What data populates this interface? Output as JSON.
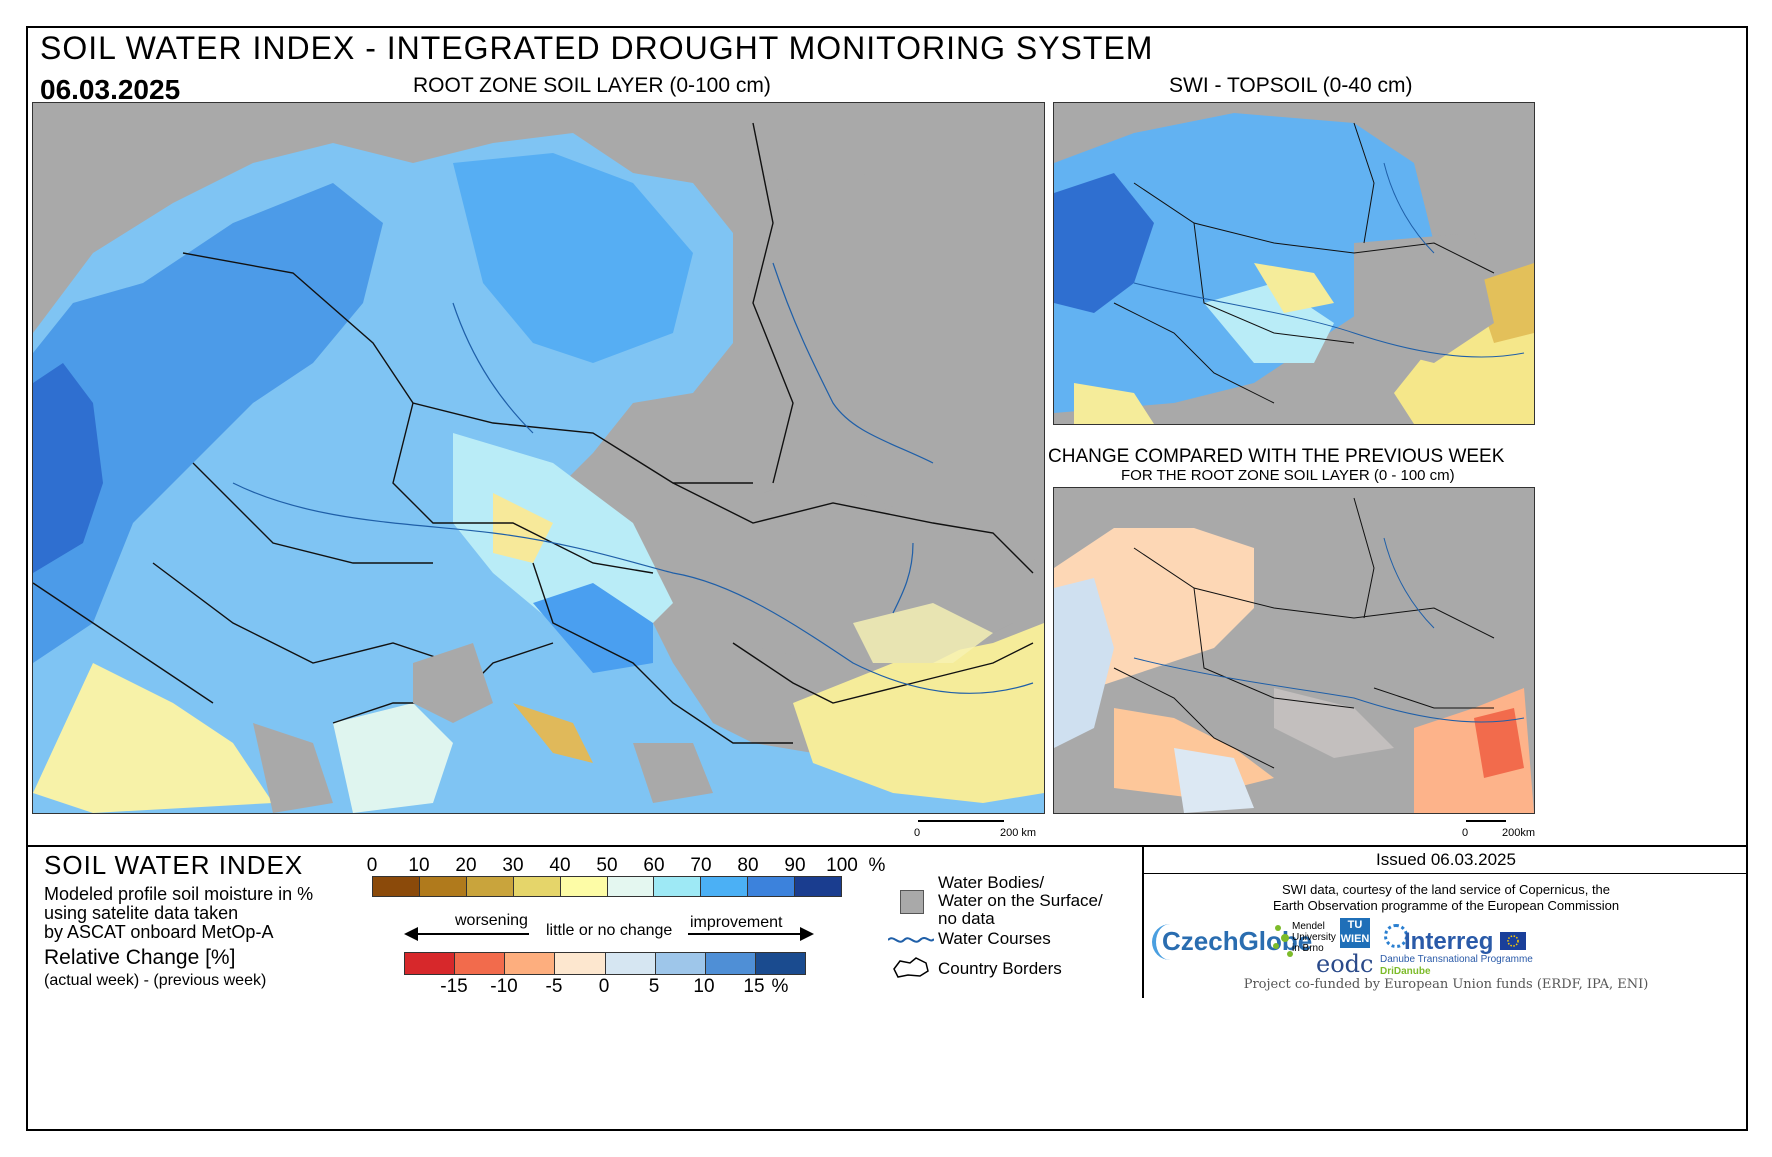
{
  "header": {
    "title": "SOIL WATER INDEX - INTEGRATED DROUGHT MONITORING SYSTEM",
    "date": "06.03.2025"
  },
  "maps": {
    "main": {
      "label": "ROOT ZONE SOIL LAYER (0-100 cm)",
      "scale_start": "0",
      "scale_end": "200 km"
    },
    "topsoil": {
      "label": "SWI - TOPSOIL (0-40 cm)"
    },
    "change": {
      "label": "CHANGE COMPARED WITH THE PREVIOUS WEEK",
      "sublabel": "FOR THE ROOT ZONE SOIL LAYER (0 - 100 cm)",
      "scale_start": "0",
      "scale_end": "200km"
    }
  },
  "legend": {
    "title": "SOIL WATER INDEX",
    "description_1": "Modeled profile soil moisture in %",
    "description_2": "using satelite data taken",
    "description_3": "by ASCAT onboard MetOp-A",
    "relative_title": "Relative Change [%]",
    "relative_sub": "(actual week) - (previous week)",
    "swi_ticks": [
      "0",
      "10",
      "20",
      "30",
      "40",
      "50",
      "60",
      "70",
      "80",
      "90",
      "100"
    ],
    "swi_unit": "%",
    "swi_colors": [
      "#8b4a0a",
      "#b07a1c",
      "#c9a43c",
      "#e5d56a",
      "#fdfca6",
      "#e4f7f0",
      "#9ee9f5",
      "#4bb0f5",
      "#3c82dc",
      "#1a3d8f"
    ],
    "worsening": "worsening",
    "little": "little or no change",
    "improvement": "improvement",
    "change_ticks": [
      "-15",
      "-10",
      "-5",
      "0",
      "5",
      "10",
      "15"
    ],
    "change_unit": "%",
    "change_colors": [
      "#d7282b",
      "#f26b4c",
      "#fdae7e",
      "#fde7cf",
      "#d6e6f2",
      "#9ec6ea",
      "#4f8fd6",
      "#1a4b8f"
    ],
    "items": {
      "water_bodies": "Water Bodies/",
      "water_surface": "Water on the Surface/",
      "no_data": "no data",
      "water_courses": "Water Courses",
      "borders": "Country Borders"
    }
  },
  "credits": {
    "issued": "Issued 06.03.2025",
    "line1": "SWI data, courtesy of the land service of Copernicus, the",
    "line2": "Earth Observation programme of the European Commission",
    "czechglobe": "CzechGlobe",
    "mendel": "Mendel University in Brno",
    "tuwien": "TU WIEN",
    "eodc": "eodc",
    "interreg": "Interreg",
    "danube": "Danube Transnational Programme",
    "dridanube": "DriDanube",
    "funding": "Project co-funded by European Union funds (ERDF, IPA, ENI)"
  }
}
